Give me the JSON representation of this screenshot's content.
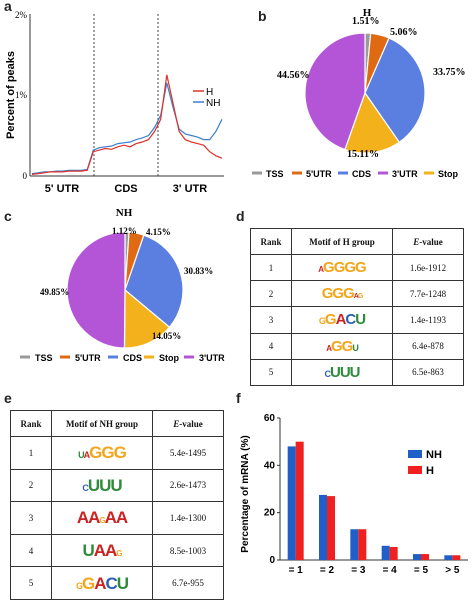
{
  "panel_labels": {
    "a": "a",
    "b": "b",
    "c": "c",
    "d": "d",
    "e": "e",
    "f": "f"
  },
  "colors": {
    "H": "#e0302a",
    "NH": "#3a7fd0",
    "TSS": "#9a9a9a",
    "utr5": "#e06a14",
    "CDS": "#5b7fe0",
    "Stop": "#f3b21b",
    "utr3": "#b455d8",
    "bar_NH": "#1f5fc7",
    "bar_H": "#ee2020"
  },
  "chart_data": [
    {
      "id": "a",
      "type": "line",
      "ylabel": "Percent of peaks",
      "yticks": [
        "0",
        "1%",
        "2%"
      ],
      "ylim": [
        0,
        2
      ],
      "regions": [
        "5' UTR",
        "CDS",
        "3' UTR"
      ],
      "series": [
        {
          "name": "H",
          "values": [
            0.02,
            0.03,
            0.04,
            0.05,
            0.05,
            0.05,
            0.06,
            0.06,
            0.06,
            0.07,
            0.3,
            0.32,
            0.34,
            0.33,
            0.36,
            0.38,
            0.36,
            0.4,
            0.42,
            0.45,
            0.55,
            0.7,
            1.25,
            0.9,
            0.55,
            0.45,
            0.42,
            0.4,
            0.38,
            0.3,
            0.25,
            0.22
          ]
        },
        {
          "name": "NH",
          "values": [
            0.03,
            0.04,
            0.05,
            0.05,
            0.06,
            0.06,
            0.07,
            0.07,
            0.07,
            0.08,
            0.32,
            0.35,
            0.36,
            0.37,
            0.4,
            0.41,
            0.42,
            0.45,
            0.47,
            0.5,
            0.6,
            0.75,
            1.15,
            0.85,
            0.58,
            0.52,
            0.5,
            0.48,
            0.45,
            0.45,
            0.55,
            0.7
          ]
        }
      ]
    },
    {
      "id": "b",
      "type": "pie",
      "title": "H",
      "slices": [
        {
          "name": "TSS",
          "value": 1.51,
          "label": "1.51%"
        },
        {
          "name": "5'UTR",
          "value": 5.06,
          "label": "5.06%"
        },
        {
          "name": "CDS",
          "value": 33.75,
          "label": "33.75%"
        },
        {
          "name": "Stop",
          "value": 15.11,
          "label": "15.11%"
        },
        {
          "name": "3'UTR",
          "value": 44.56,
          "label": "44.56%"
        }
      ],
      "legend": [
        "TSS",
        "5'UTR",
        "CDS",
        "3'UTR",
        "Stop"
      ]
    },
    {
      "id": "c",
      "type": "pie",
      "title": "NH",
      "slices": [
        {
          "name": "TSS",
          "value": 1.12,
          "label": "1.12%"
        },
        {
          "name": "5'UTR",
          "value": 4.15,
          "label": "4.15%"
        },
        {
          "name": "CDS",
          "value": 30.83,
          "label": "30.83%"
        },
        {
          "name": "Stop",
          "value": 14.05,
          "label": "14.05%"
        },
        {
          "name": "3'UTR",
          "value": 49.85,
          "label": "49.85%"
        }
      ],
      "legend": [
        "TSS",
        "5'UTR",
        "CDS",
        "Stop",
        "3'UTR"
      ]
    },
    {
      "id": "f",
      "type": "bar",
      "ylabel": "Percentage of mRNA (%)",
      "categories": [
        "= 1",
        "= 2",
        "= 3",
        "= 4",
        "= 5",
        "> 5"
      ],
      "yticks": [
        "0",
        "20",
        "40",
        "60"
      ],
      "ylim": [
        0,
        60
      ],
      "series": [
        {
          "name": "NH",
          "values": [
            48,
            27.5,
            13,
            6,
            2.5,
            2
          ]
        },
        {
          "name": "H",
          "values": [
            50,
            27,
            13,
            5.5,
            2.5,
            2
          ]
        }
      ]
    }
  ],
  "table_d": {
    "headers": {
      "rank": "Rank",
      "motif": "Motif of H group",
      "evalue_e": "E",
      "evalue_rest": "-value"
    },
    "rows": [
      {
        "rank": "1",
        "motif": "AGGGG",
        "evalue": "1.6e-1912"
      },
      {
        "rank": "2",
        "motif": "GGG",
        "evalue": "7.7e-1248"
      },
      {
        "rank": "3",
        "motif": "GACU",
        "evalue": "1.4e-1193"
      },
      {
        "rank": "4",
        "motif": "GGU",
        "evalue": "6.4e-878"
      },
      {
        "rank": "5",
        "motif": "CUUU",
        "evalue": "6.5e-863"
      }
    ]
  },
  "table_e": {
    "headers": {
      "rank": "Rank",
      "motif": "Motif of NH group",
      "evalue_e": "E",
      "evalue_rest": "-value"
    },
    "rows": [
      {
        "rank": "1",
        "motif": "UGGG",
        "evalue": "5.4e-1495"
      },
      {
        "rank": "2",
        "motif": "UUU",
        "evalue": "2.6e-1473"
      },
      {
        "rank": "3",
        "motif": "AAAA",
        "evalue": "1.4e-1300"
      },
      {
        "rank": "4",
        "motif": "UAA",
        "evalue": "8.5e-1003"
      },
      {
        "rank": "5",
        "motif": "GACU",
        "evalue": "6.7e-955"
      }
    ]
  }
}
